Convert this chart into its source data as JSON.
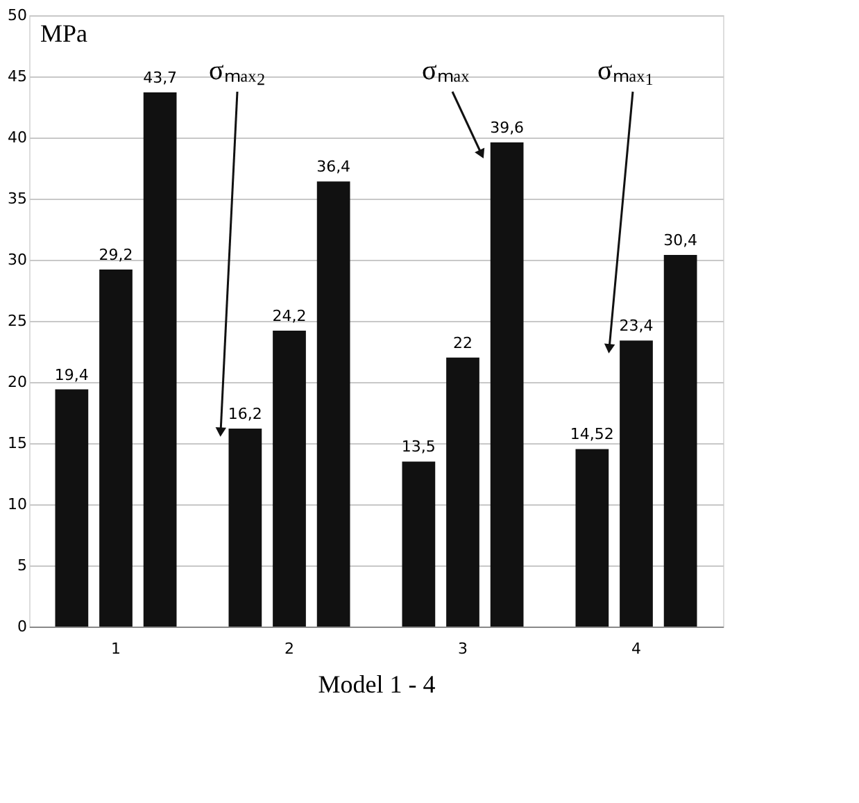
{
  "chart_data": {
    "type": "bar",
    "xlabel": "Model 1 - 4",
    "ylabel": "MPa",
    "categories": [
      "1",
      "2",
      "3",
      "4"
    ],
    "series": [
      {
        "color": "#111111",
        "values": [
          19.4,
          16.2,
          13.5,
          14.52
        ],
        "value_labels": [
          "19,4",
          "16,2",
          "13,5",
          "14,52"
        ]
      },
      {
        "color": "#111111",
        "values": [
          29.2,
          24.2,
          22,
          23.4
        ],
        "value_labels": [
          "29,2",
          "24,2",
          "22",
          "23,4"
        ]
      },
      {
        "color": "#111111",
        "values": [
          43.7,
          36.4,
          39.6,
          30.4
        ],
        "value_labels": [
          "43,7",
          "36,4",
          "39,6",
          "30,4"
        ]
      }
    ],
    "ylim": [
      0,
      50
    ],
    "yticks": [
      0,
      5,
      10,
      15,
      20,
      25,
      30,
      35,
      40,
      45,
      50
    ],
    "grid": "y",
    "annotations": [
      "σₘₐₓ₂",
      "σₘₐₓ",
      "σₘₐₓ₁"
    ]
  }
}
